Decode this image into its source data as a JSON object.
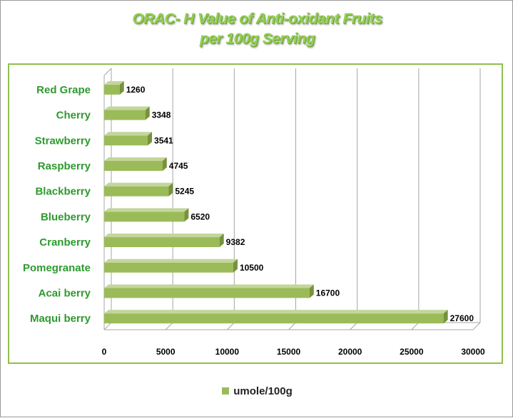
{
  "title_line1": "ORAC- H Value of Anti-oxidant Fruits",
  "title_line2": "per 100g Serving",
  "legend_label": "umole/100g",
  "colors": {
    "bar_front": "#9bbb59",
    "bar_top": "#c3d69b",
    "bar_side": "#76923c",
    "label_green": "#2e9a2e",
    "title_green": "#92d050",
    "border_green": "#8fbf4f"
  },
  "chart_data": {
    "type": "bar",
    "orientation": "horizontal",
    "three_d": true,
    "title": "ORAC- H Value of Anti-oxidant Fruits per 100g Serving",
    "categories": [
      "Red Grape",
      "Cherry",
      "Strawberry",
      "Raspberry",
      "Blackberry",
      "Blueberry",
      "Cranberry",
      "Pomegranate",
      "Acai berry",
      "Maqui berry"
    ],
    "series": [
      {
        "name": "umole/100g",
        "values": [
          1260,
          3348,
          3541,
          4745,
          5245,
          6520,
          9382,
          10500,
          16700,
          27600
        ]
      }
    ],
    "xlim": [
      0,
      30000
    ],
    "x_ticks": [
      "0",
      "5000",
      "10000",
      "15000",
      "20000",
      "25000",
      "30000"
    ],
    "grid": true,
    "legend_position": "bottom",
    "data_labels": true
  }
}
